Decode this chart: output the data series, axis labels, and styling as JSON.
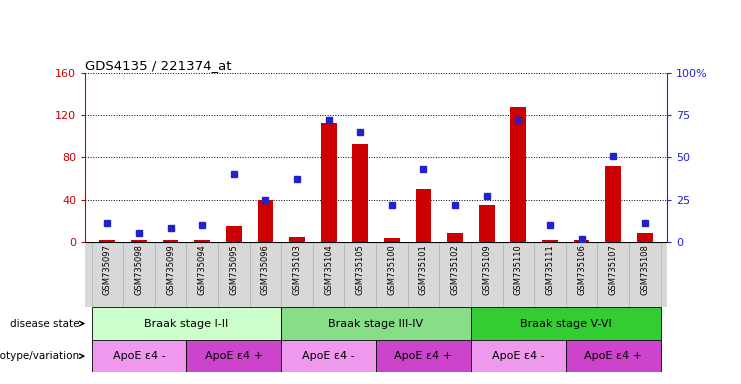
{
  "title": "GDS4135 / 221374_at",
  "samples": [
    "GSM735097",
    "GSM735098",
    "GSM735099",
    "GSM735094",
    "GSM735095",
    "GSM735096",
    "GSM735103",
    "GSM735104",
    "GSM735105",
    "GSM735100",
    "GSM735101",
    "GSM735102",
    "GSM735109",
    "GSM735110",
    "GSM735111",
    "GSM735106",
    "GSM735107",
    "GSM735108"
  ],
  "counts": [
    2,
    2,
    2,
    2,
    15,
    40,
    5,
    113,
    93,
    4,
    50,
    8,
    35,
    128,
    2,
    2,
    72,
    8
  ],
  "percentiles": [
    11,
    5,
    8,
    10,
    40,
    25,
    37,
    72,
    65,
    22,
    43,
    22,
    27,
    72,
    10,
    2,
    51,
    11
  ],
  "ylim_left": [
    0,
    160
  ],
  "ylim_right": [
    0,
    100
  ],
  "yticks_left": [
    0,
    40,
    80,
    120,
    160
  ],
  "yticks_right": [
    0,
    25,
    50,
    75,
    100
  ],
  "ytick_labels_right": [
    "0",
    "25",
    "50",
    "75",
    "100%"
  ],
  "bar_color": "#cc0000",
  "dot_color": "#2222cc",
  "left_axis_color": "#cc0000",
  "right_axis_color": "#2222cc",
  "disease_state_groups": [
    {
      "label": "Braak stage I-II",
      "start": 0,
      "end": 6,
      "color": "#ccffcc"
    },
    {
      "label": "Braak stage III-IV",
      "start": 6,
      "end": 12,
      "color": "#88dd88"
    },
    {
      "label": "Braak stage V-VI",
      "start": 12,
      "end": 18,
      "color": "#33cc33"
    }
  ],
  "genotype_groups": [
    {
      "label": "ApoE ε4 -",
      "start": 0,
      "end": 3,
      "color": "#ee99ee"
    },
    {
      "label": "ApoE ε4 +",
      "start": 3,
      "end": 6,
      "color": "#cc44cc"
    },
    {
      "label": "ApoE ε4 -",
      "start": 6,
      "end": 9,
      "color": "#ee99ee"
    },
    {
      "label": "ApoE ε4 +",
      "start": 9,
      "end": 12,
      "color": "#cc44cc"
    },
    {
      "label": "ApoE ε4 -",
      "start": 12,
      "end": 15,
      "color": "#ee99ee"
    },
    {
      "label": "ApoE ε4 +",
      "start": 15,
      "end": 18,
      "color": "#cc44cc"
    }
  ]
}
